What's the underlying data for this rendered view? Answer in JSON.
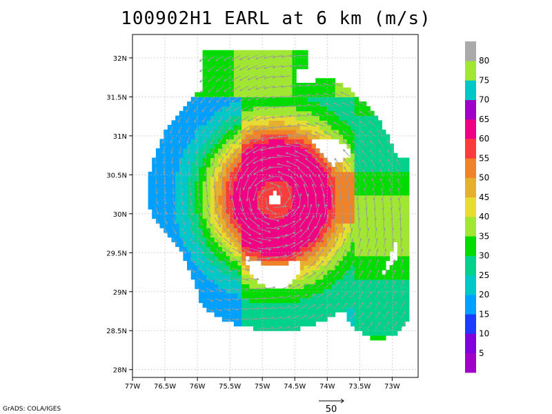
{
  "chart_data": {
    "type": "heatmap",
    "title": "100902H1 EARL at 6 km (m/s)",
    "x_axis": {
      "range": [
        -77.0,
        -72.6
      ],
      "ticks": [
        -77,
        -76.5,
        -76,
        -75.5,
        -75,
        -74.5,
        -74,
        -73.5,
        -73
      ],
      "tick_labels": [
        "77W",
        "76.5W",
        "76W",
        "75.5W",
        "75W",
        "74.5W",
        "74W",
        "73.5W",
        "73W"
      ]
    },
    "y_axis": {
      "range": [
        27.9,
        32.3
      ],
      "ticks": [
        28,
        28.5,
        29,
        29.5,
        30,
        30.5,
        31,
        31.5,
        32
      ],
      "tick_labels": [
        "28N",
        "28.5N",
        "29N",
        "29.5N",
        "30N",
        "30.5N",
        "31N",
        "31.5N",
        "32N"
      ]
    },
    "grid": true,
    "storm_center": {
      "lon": -74.8,
      "lat": 30.2
    },
    "colorbar": {
      "levels": [
        "5",
        "10",
        "15",
        "20",
        "25",
        "30",
        "35",
        "40",
        "45",
        "50",
        "55",
        "60",
        "65",
        "70",
        "75",
        "80"
      ],
      "colors": [
        "#a000c8",
        "#8200dc",
        "#1e3cff",
        "#00a0ff",
        "#00c8c8",
        "#00d28c",
        "#00dc00",
        "#a0e632",
        "#e6dc32",
        "#e6af2d",
        "#f08228",
        "#fa3c3c",
        "#f00082",
        "#a000c8",
        "#00c8c8",
        "#a0e632",
        "#aaaaaa"
      ]
    },
    "vector_reference": {
      "label": "50"
    },
    "credit": "GrADS: COLA/IGES"
  }
}
